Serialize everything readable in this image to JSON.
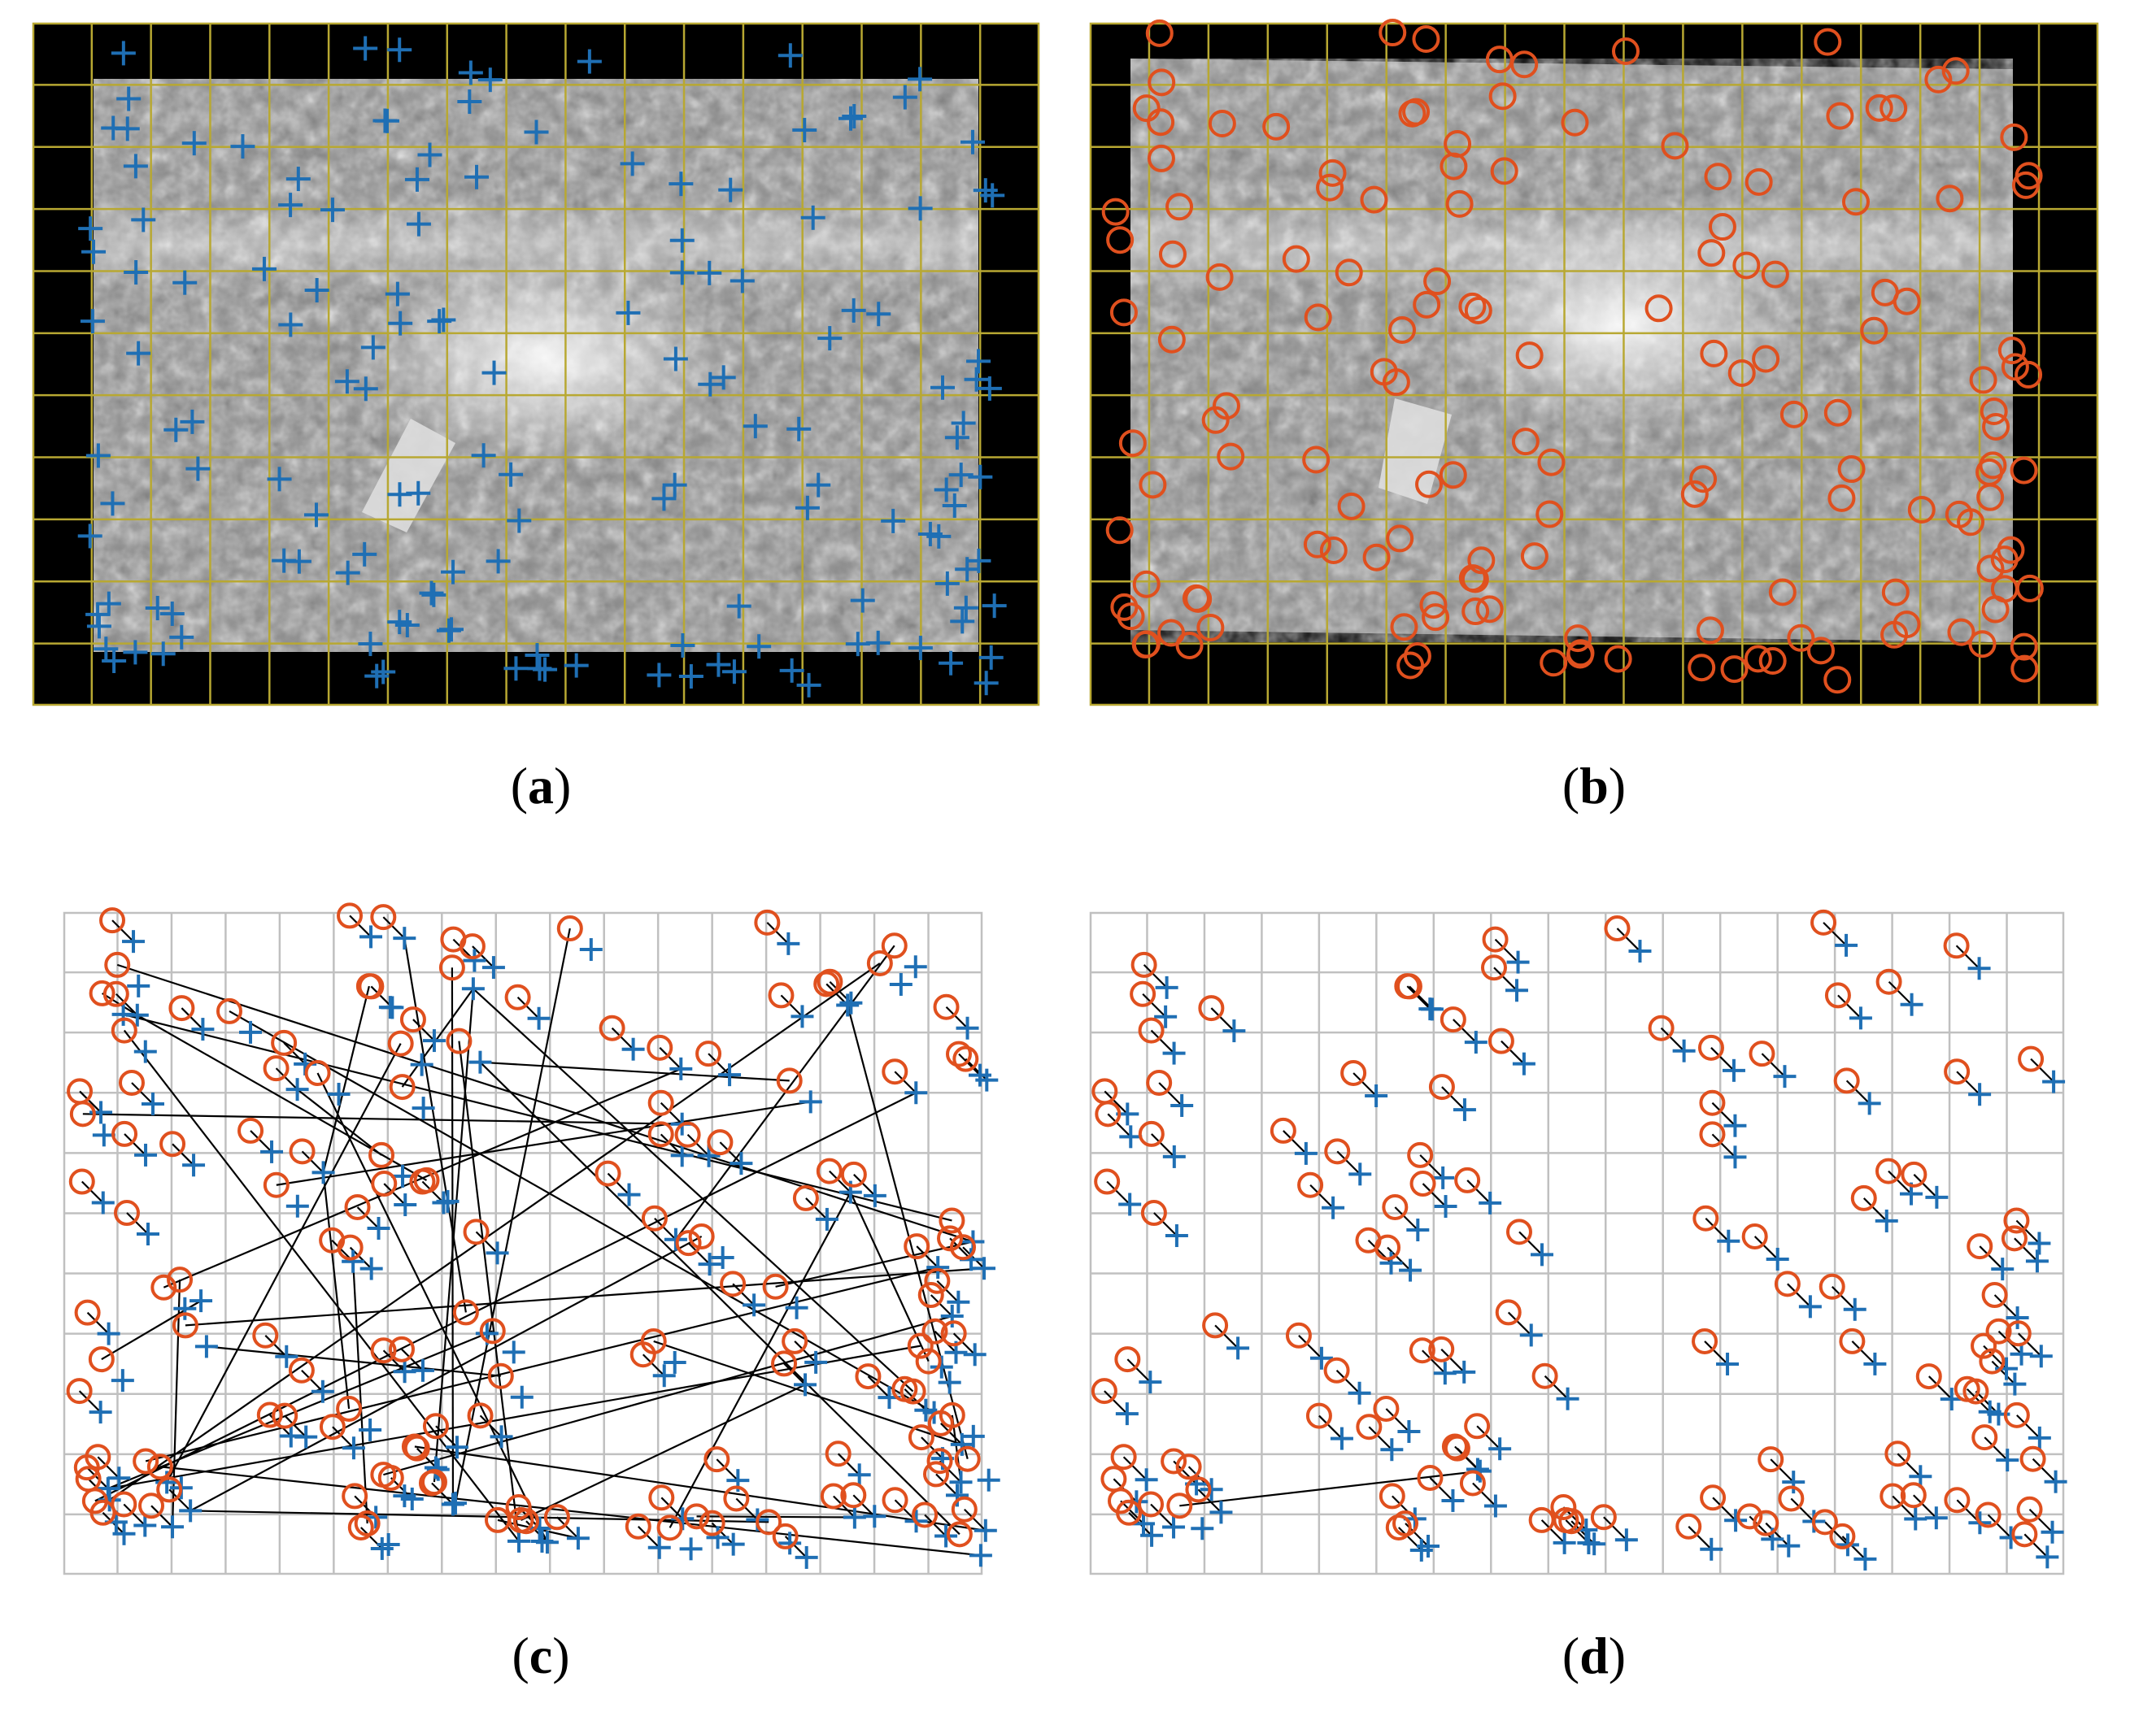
{
  "figure": {
    "panels": [
      {
        "id": "a",
        "caption_letter": "a",
        "kind": "image-keypoints",
        "marker": "plus"
      },
      {
        "id": "b",
        "caption_letter": "b",
        "kind": "image-keypoints",
        "marker": "circle"
      },
      {
        "id": "c",
        "caption_letter": "c",
        "kind": "initial-matches"
      },
      {
        "id": "d",
        "caption_letter": "d",
        "kind": "refined-matches"
      }
    ],
    "colors": {
      "plus_marker": "#1f6fb4",
      "circle_marker": "#e0501e",
      "image_grid": "#b8a832",
      "match_grid": "#c0c0c0",
      "match_line": "#000000",
      "frame_bg": "#000000"
    },
    "grid": {
      "cols": 17,
      "rows": 11
    }
  }
}
